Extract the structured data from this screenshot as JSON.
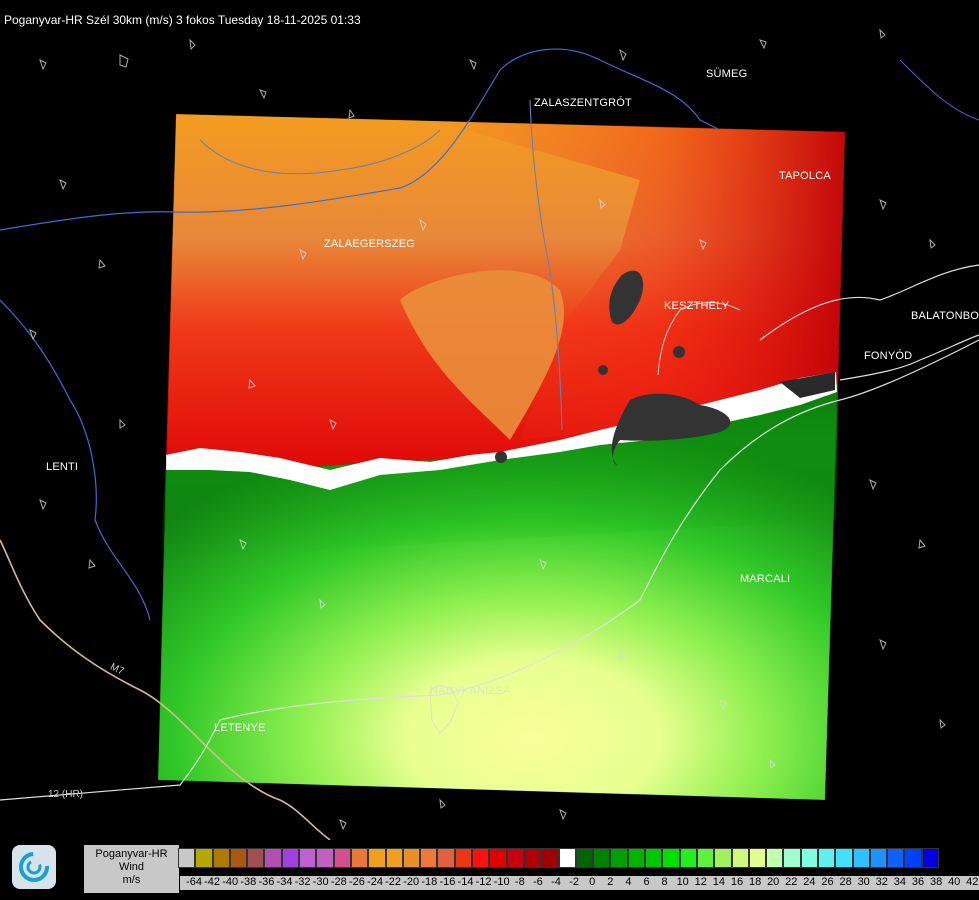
{
  "header": {
    "title": "Poganyvar-HR Szél 30km (m/s) 3 fokos Tuesday 18-11-2025 01:33"
  },
  "cities": [
    {
      "id": "sumeg",
      "name": "SÜMEG"
    },
    {
      "id": "zalaszentgrot",
      "name": "ZALASZENTGRÓT"
    },
    {
      "id": "tapolca",
      "name": "TAPOLCA"
    },
    {
      "id": "zalaegerszeg",
      "name": "ZALAEGERSZEG"
    },
    {
      "id": "keszthely",
      "name": "KESZTHELY"
    },
    {
      "id": "balatonboglar",
      "name": "BALATONBO"
    },
    {
      "id": "fonyod",
      "name": "FONYÓD"
    },
    {
      "id": "lenti",
      "name": "LENTI"
    },
    {
      "id": "marcali",
      "name": "MARCALI"
    },
    {
      "id": "nagykanizsa",
      "name": "NAGYKANIZSA"
    },
    {
      "id": "letenye",
      "name": "LETENYE"
    }
  ],
  "road_labels": {
    "hr12": "12 (HR)",
    "m7": "M7"
  },
  "legend": {
    "station": "Poganyvar-HR",
    "quantity": "Wind",
    "unit": "m/s",
    "tick_labels": [
      "-64",
      "-42",
      "-40",
      "-38",
      "-36",
      "-34",
      "-32",
      "-30",
      "-28",
      "-26",
      "-24",
      "-22",
      "-20",
      "-18",
      "-16",
      "-14",
      "-12",
      "-10",
      "-8",
      "-6",
      "-4",
      "-2",
      "0",
      "2",
      "4",
      "6",
      "8",
      "10",
      "12",
      "14",
      "16",
      "18",
      "20",
      "22",
      "24",
      "26",
      "28",
      "30",
      "32",
      "34",
      "36",
      "38",
      "40",
      "42"
    ],
    "colors": [
      "#c8c8c8",
      "#b5a800",
      "#b07a00",
      "#a85a10",
      "#a05050",
      "#b050b0",
      "#a040e0",
      "#c060d0",
      "#c060c0",
      "#d05090",
      "#e87838",
      "#f0a020",
      "#f0a020",
      "#e89028",
      "#f07838",
      "#e06040",
      "#e83818",
      "#ff1010",
      "#e00000",
      "#c80010",
      "#b00008",
      "#a00000",
      "#ffffff",
      "#006400",
      "#008000",
      "#00a000",
      "#00b400",
      "#00c800",
      "#00e000",
      "#20f020",
      "#60f040",
      "#a0f060",
      "#d0f880",
      "#e0ff90",
      "#c0ffb0",
      "#a0ffd0",
      "#80ffe0",
      "#60f0f0",
      "#40e0ff",
      "#30c0ff",
      "#2090ff",
      "#1060ff",
      "#0040ff",
      "#0000e0"
    ]
  },
  "radar_colors": {
    "orange_light": "#f0a020",
    "orange": "#e88830",
    "red": "#e82010",
    "dark_red": "#b80008",
    "green_dark": "#108010",
    "green": "#20c020",
    "green_light": "#70e040",
    "yellow": "#f4ff90",
    "no_data": "#333333"
  }
}
